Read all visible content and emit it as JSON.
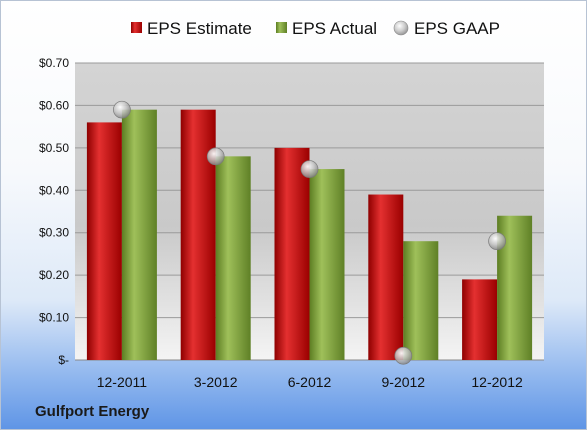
{
  "company": "Gulfport Energy",
  "chart_data": {
    "type": "bar",
    "categories": [
      "12-2011",
      "3-2012",
      "6-2012",
      "9-2012",
      "12-2012"
    ],
    "series": [
      {
        "name": "EPS Estimate",
        "type": "bar",
        "color": "#c00000",
        "values": [
          0.56,
          0.59,
          0.5,
          0.39,
          0.19
        ]
      },
      {
        "name": "EPS Actual",
        "type": "bar",
        "color": "#7fa33b",
        "values": [
          0.59,
          0.48,
          0.45,
          0.28,
          0.34
        ]
      },
      {
        "name": "EPS GAAP",
        "type": "scatter",
        "color": "#b0b0b0",
        "values": [
          0.59,
          0.48,
          0.45,
          0.01,
          0.28
        ]
      }
    ],
    "yticks": [
      "$-",
      "$0.10",
      "$0.20",
      "$0.30",
      "$0.40",
      "$0.50",
      "$0.60",
      "$0.70"
    ],
    "ylim": [
      0,
      0.7
    ],
    "grid": true,
    "legend": "top"
  }
}
